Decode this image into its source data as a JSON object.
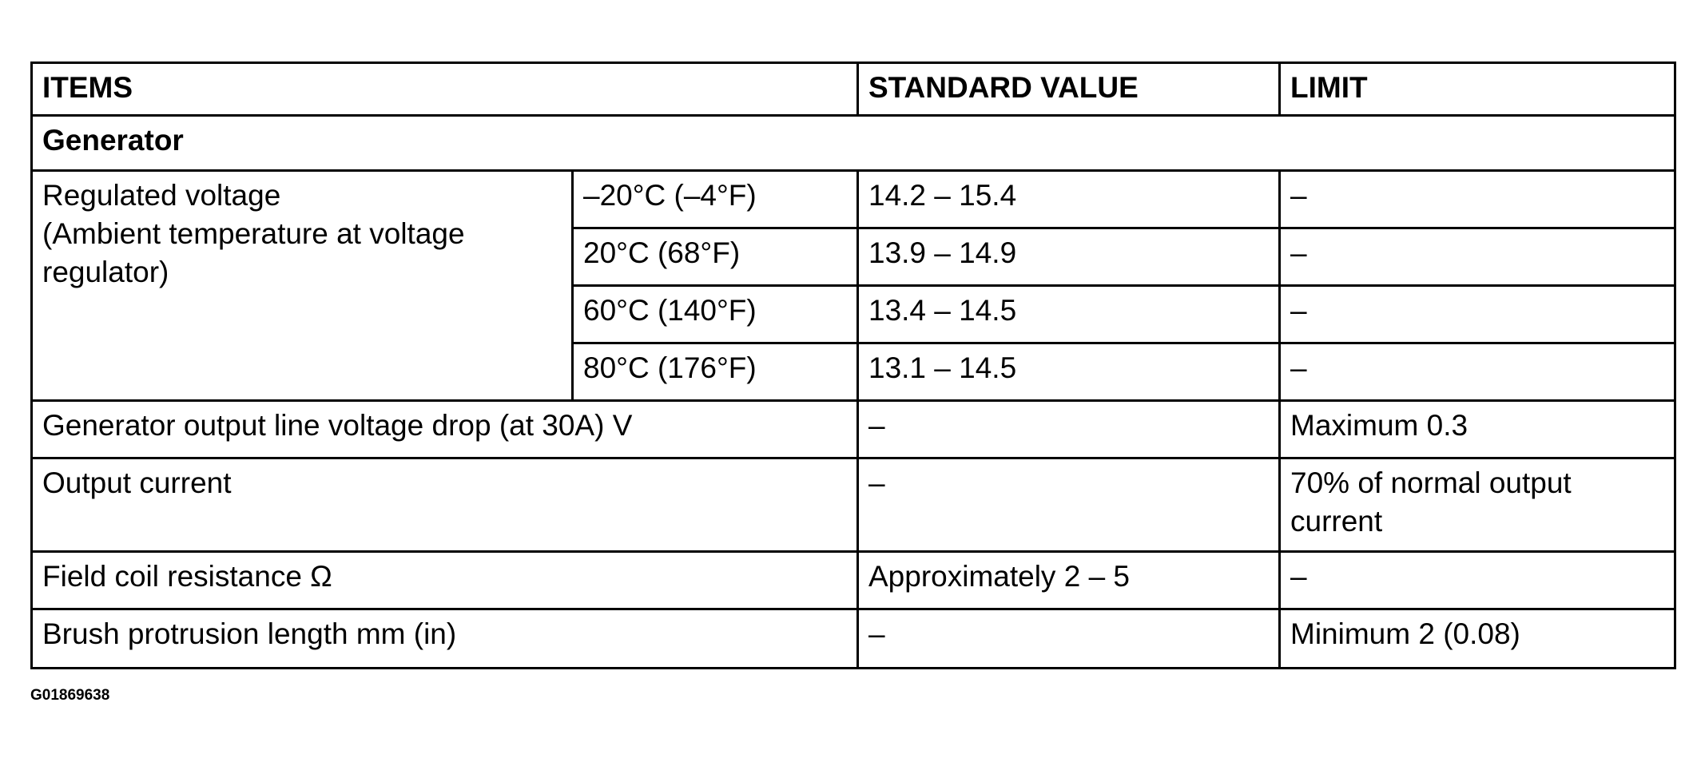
{
  "headers": {
    "items": "ITEMS",
    "standard": "STANDARD VALUE",
    "limit": "LIMIT"
  },
  "section": "Generator",
  "regulated": {
    "label_lines": [
      "Regulated voltage",
      "(Ambient temperature at voltage",
      "regulator)"
    ],
    "rows": [
      {
        "temp": "–20°C (–4°F)",
        "standard": "14.2 – 15.4",
        "limit": "–"
      },
      {
        "temp": "20°C (68°F)",
        "standard": "13.9 – 14.9",
        "limit": "–"
      },
      {
        "temp": "60°C (140°F)",
        "standard": "13.4 – 14.5",
        "limit": "–"
      },
      {
        "temp": "80°C (176°F)",
        "standard": "13.1 – 14.5",
        "limit": "–"
      }
    ]
  },
  "rows": [
    {
      "item": "Generator output line voltage drop (at 30A) V",
      "standard": "–",
      "limit": "Maximum 0.3"
    },
    {
      "item": "Output current",
      "standard": "–",
      "limit_lines": [
        "70% of normal output",
        "current"
      ]
    },
    {
      "item": "Field coil resistance Ω",
      "standard": "Approximately 2 – 5",
      "limit": "–"
    },
    {
      "item": "Brush protrusion length mm (in)",
      "standard": "–",
      "limit": "Minimum 2 (0.08)"
    }
  ],
  "footer": "G01869638"
}
